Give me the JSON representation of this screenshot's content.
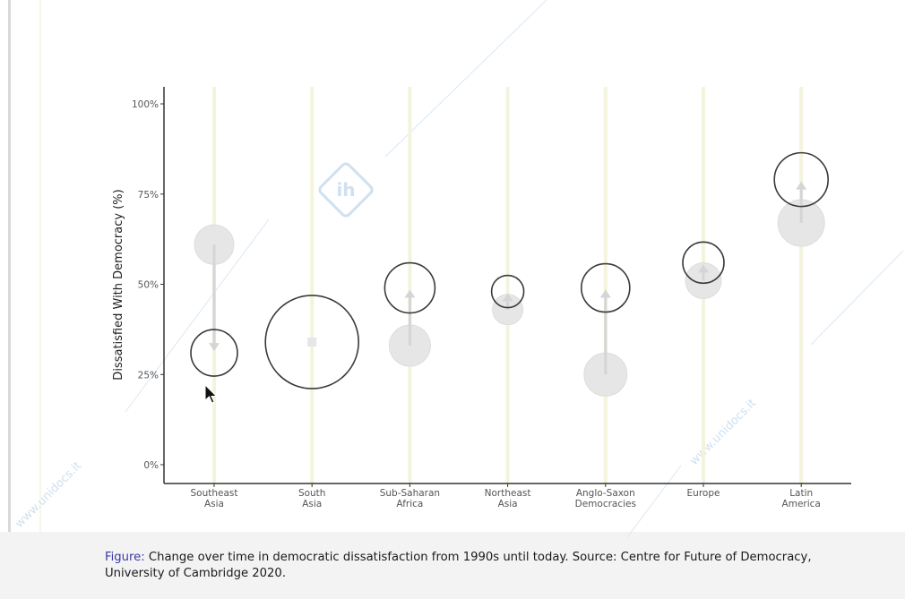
{
  "caption": {
    "label": "Figure:",
    "text": " Change over time in democratic dissatisfaction from 1990s until today. Source: Centre for Future of Democracy, University of Cambridge 2020."
  },
  "watermark": {
    "text": "www.unidocs.it",
    "logo_text": "ih"
  },
  "colors": {
    "before_fill": "#e6e6e6",
    "after_stroke": "#3a3a3a",
    "arrow": "#d5d5d5",
    "guide": "#f4f4de",
    "axis": "#333333",
    "watermark": "#cfe0f0"
  },
  "chart_data": {
    "type": "scatter",
    "ylabel": "Dissatisfied With Democracy (%)",
    "xlabel": "",
    "ylim": [
      0,
      100
    ],
    "yticks": [
      0,
      25,
      50,
      75,
      100
    ],
    "yticklabels": [
      "0%",
      "25%",
      "50%",
      "75%",
      "100%"
    ],
    "grid": false,
    "categories": [
      [
        "Southeast",
        "Asia"
      ],
      [
        "South",
        "Asia"
      ],
      [
        "Sub-Saharan",
        "Africa"
      ],
      [
        "Northeast",
        "Asia"
      ],
      [
        "Anglo-Saxon",
        "Democracies"
      ],
      [
        "Europe"
      ],
      [
        "Latin",
        "America"
      ]
    ],
    "series": [
      {
        "values": [
          61,
          null,
          33,
          43,
          25,
          51,
          67
        ]
      },
      {
        "values": [
          31,
          34,
          49,
          48,
          49,
          56,
          79
        ]
      }
    ]
  }
}
